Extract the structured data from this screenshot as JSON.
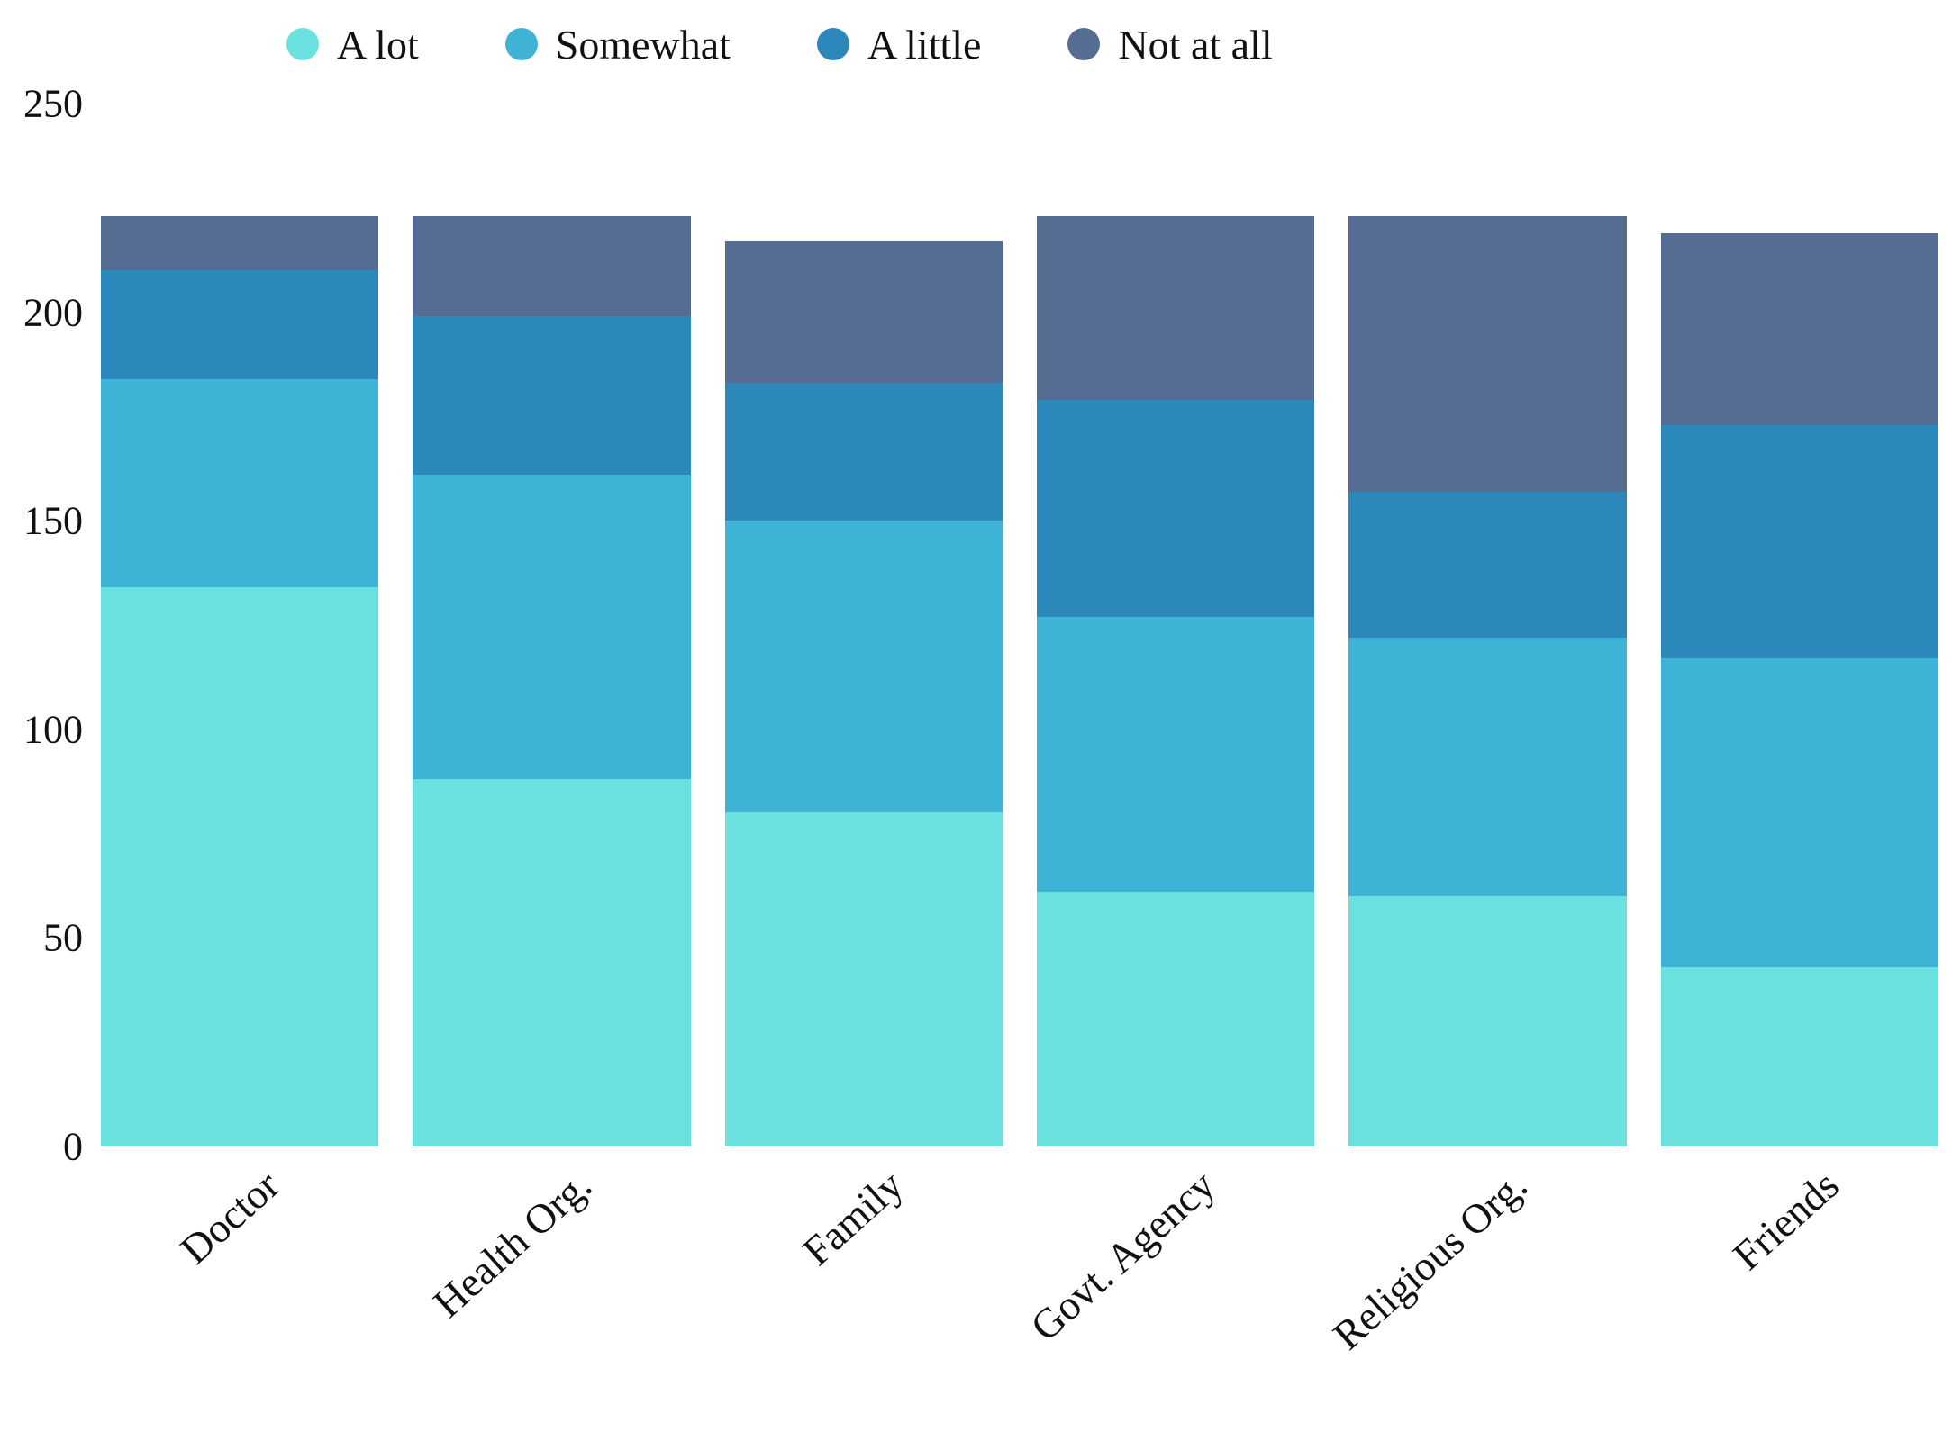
{
  "chart_data": {
    "type": "bar",
    "stacked": true,
    "title": "",
    "xlabel": "",
    "ylabel": "",
    "categories": [
      "Doctor",
      "Health Org.",
      "Family",
      "Govt. Agency",
      "Religious Org.",
      "Friends"
    ],
    "series": [
      {
        "name": "A lot",
        "color": "#6ae1df",
        "values": [
          134,
          88,
          80,
          61,
          60,
          43
        ]
      },
      {
        "name": "Somewhat",
        "color": "#3eb3d5",
        "values": [
          50,
          73,
          70,
          66,
          62,
          74
        ]
      },
      {
        "name": "A little",
        "color": "#2c88bb",
        "values": [
          26,
          38,
          33,
          52,
          35,
          56
        ]
      },
      {
        "name": "Not at all",
        "color": "#556d93",
        "values": [
          13,
          24,
          34,
          44,
          66,
          46
        ]
      }
    ],
    "ylim": [
      0,
      250
    ],
    "yticks": [
      0,
      50,
      100,
      150,
      200,
      250
    ],
    "legend_position": "top",
    "grid": false,
    "background": "#ffffff"
  }
}
